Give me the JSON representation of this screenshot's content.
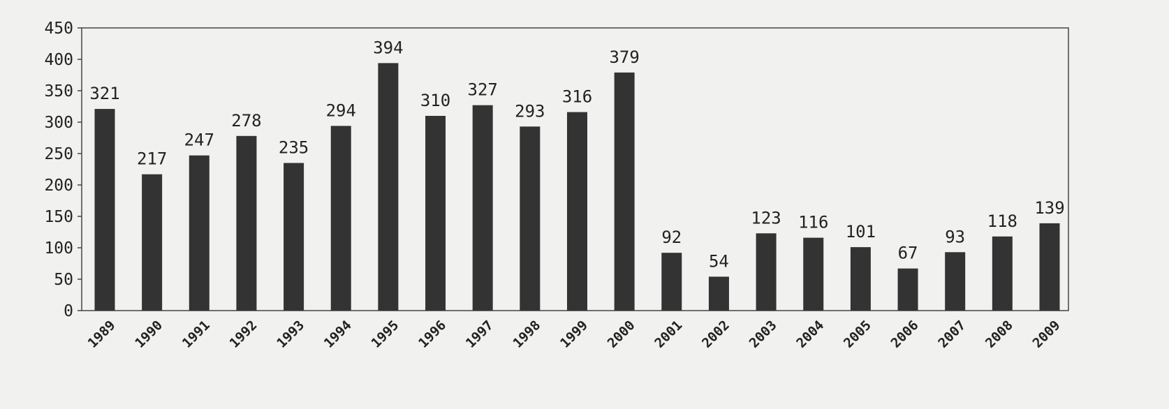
{
  "chart_data": {
    "type": "bar",
    "title": "",
    "xlabel": "",
    "ylabel": "",
    "categories": [
      "1989",
      "1990",
      "1991",
      "1992",
      "1993",
      "1994",
      "1995",
      "1996",
      "1997",
      "1998",
      "1999",
      "2000",
      "2001",
      "2002",
      "2003",
      "2004",
      "2005",
      "2006",
      "2007",
      "2008",
      "2009"
    ],
    "values": [
      321,
      217,
      247,
      278,
      235,
      294,
      394,
      310,
      327,
      293,
      316,
      379,
      92,
      54,
      123,
      116,
      101,
      67,
      93,
      118,
      139
    ],
    "ylim": [
      0,
      450
    ],
    "yticks": [
      0,
      50,
      100,
      150,
      200,
      250,
      300,
      350,
      400,
      450
    ],
    "grid": false,
    "legend": "none",
    "data_labels": true,
    "colors": {
      "bar": "#333333",
      "background": "#f1f1ef",
      "axis": "#333333"
    }
  }
}
